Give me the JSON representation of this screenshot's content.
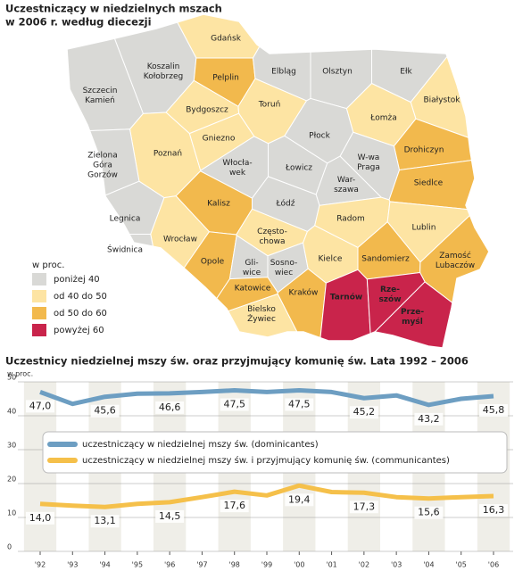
{
  "map": {
    "title": [
      "Uczestniczący w niedzielnych mszach",
      "w 2006 r. według diecezji"
    ],
    "legend_title": "w proc.",
    "legend": [
      {
        "label": "poniżej 40",
        "color": "#d9d9d6"
      },
      {
        "label": "od 40 do 50",
        "color": "#fde4a3"
      },
      {
        "label": "od 50 do 60",
        "color": "#f2b94d"
      },
      {
        "label": "powyżej 60",
        "color": "#c9244b"
      }
    ],
    "dioceses": [
      {
        "lines": [
          "Gdańsk"
        ],
        "class": 1
      },
      {
        "lines": [
          "Koszalin",
          "Kołobrzeg"
        ],
        "class": 0
      },
      {
        "lines": [
          "Pelplin"
        ],
        "class": 2
      },
      {
        "lines": [
          "Elbląg"
        ],
        "class": 0
      },
      {
        "lines": [
          "Olsztyn"
        ],
        "class": 0
      },
      {
        "lines": [
          "Ełk"
        ],
        "class": 0
      },
      {
        "lines": [
          "Szczecin",
          "Kamień"
        ],
        "class": 0
      },
      {
        "lines": [
          "Bydgoszcz"
        ],
        "class": 1
      },
      {
        "lines": [
          "Toruń"
        ],
        "class": 1
      },
      {
        "lines": [
          "Białystok"
        ],
        "class": 1
      },
      {
        "lines": [
          "Łomża"
        ],
        "class": 1
      },
      {
        "lines": [
          "Drohiczyn"
        ],
        "class": 2
      },
      {
        "lines": [
          "Płock"
        ],
        "class": 0
      },
      {
        "lines": [
          "Poznań"
        ],
        "class": 1
      },
      {
        "lines": [
          "Gniezno"
        ],
        "class": 1
      },
      {
        "lines": [
          "Zielona",
          "Góra",
          "Gorzów"
        ],
        "class": 0
      },
      {
        "lines": [
          "Włocła-",
          "wek"
        ],
        "class": 0
      },
      {
        "lines": [
          "Łowicz"
        ],
        "class": 0
      },
      {
        "lines": [
          "W-wa",
          "Praga"
        ],
        "class": 0
      },
      {
        "lines": [
          "War-",
          "szawa"
        ],
        "class": 0
      },
      {
        "lines": [
          "Siedlce"
        ],
        "class": 2
      },
      {
        "lines": [
          "Kalisz"
        ],
        "class": 2
      },
      {
        "lines": [
          "Łódź"
        ],
        "class": 0
      },
      {
        "lines": [
          "Legnica"
        ],
        "class": 0
      },
      {
        "lines": [
          "Wrocław"
        ],
        "class": 1
      },
      {
        "lines": [
          "Radom"
        ],
        "class": 1
      },
      {
        "lines": [
          "Lublin"
        ],
        "class": 1
      },
      {
        "lines": [
          "Świdnica"
        ],
        "class": 0
      },
      {
        "lines": [
          "Często-",
          "chowa"
        ],
        "class": 1
      },
      {
        "lines": [
          "Opole"
        ],
        "class": 2
      },
      {
        "lines": [
          "Gli-",
          "wice"
        ],
        "class": 0
      },
      {
        "lines": [
          "Sosno-",
          "wiec"
        ],
        "class": 0
      },
      {
        "lines": [
          "Kielce"
        ],
        "class": 1
      },
      {
        "lines": [
          "Sandomierz"
        ],
        "class": 2
      },
      {
        "lines": [
          "Zamość",
          "Lubaczów"
        ],
        "class": 2
      },
      {
        "lines": [
          "Katowice"
        ],
        "class": 2
      },
      {
        "lines": [
          "Kraków"
        ],
        "class": 2
      },
      {
        "lines": [
          "Bielsko",
          "Żywiec"
        ],
        "class": 1
      },
      {
        "lines": [
          "Tarnów"
        ],
        "class": 3
      },
      {
        "lines": [
          "Rze-",
          "szów"
        ],
        "class": 3
      },
      {
        "lines": [
          "Prze-",
          "myśl"
        ],
        "class": 3
      }
    ]
  },
  "chart_data": {
    "type": "line",
    "title": "Uczestnicy  niedzielnej mszy św. oraz  przyjmujący komunię św. Lata 1992 – 2006",
    "y_label": "w proc.",
    "categories": [
      "'92",
      "'93",
      "'94",
      "'95",
      "'96",
      "'97",
      "'98",
      "'99",
      "'00",
      "'01",
      "'02",
      "'03",
      "'04",
      "'05",
      "'06"
    ],
    "series": [
      {
        "name": "uczestniczący w niedzielnej mszy św. (dominicantes)",
        "color": "#6d9ec2",
        "values": [
          47.0,
          43.5,
          45.6,
          46.5,
          46.6,
          47.0,
          47.5,
          47.0,
          47.5,
          47.0,
          45.2,
          46.0,
          43.2,
          45.0,
          45.8
        ],
        "value_labels": [
          "47,0",
          null,
          "45,6",
          null,
          "46,6",
          null,
          "47,5",
          null,
          "47,5",
          null,
          "45,2",
          null,
          "43,2",
          null,
          "45,8"
        ]
      },
      {
        "name": "uczestniczący w niedzielnej mszy św. i przyjmujący komunię św. (communicantes)",
        "color": "#f5c04a",
        "values": [
          14.0,
          13.5,
          13.1,
          14.0,
          14.5,
          16.0,
          17.6,
          16.5,
          19.4,
          17.5,
          17.3,
          16.0,
          15.6,
          16.0,
          16.3
        ],
        "value_labels": [
          "14,0",
          null,
          "13,1",
          null,
          "14,5",
          null,
          "17,6",
          null,
          "19,4",
          null,
          "17,3",
          null,
          "15,6",
          null,
          "16,3"
        ]
      }
    ],
    "ylim": [
      0,
      50
    ],
    "yticks": [
      0,
      10,
      20,
      30,
      40,
      50
    ],
    "grid": true
  }
}
